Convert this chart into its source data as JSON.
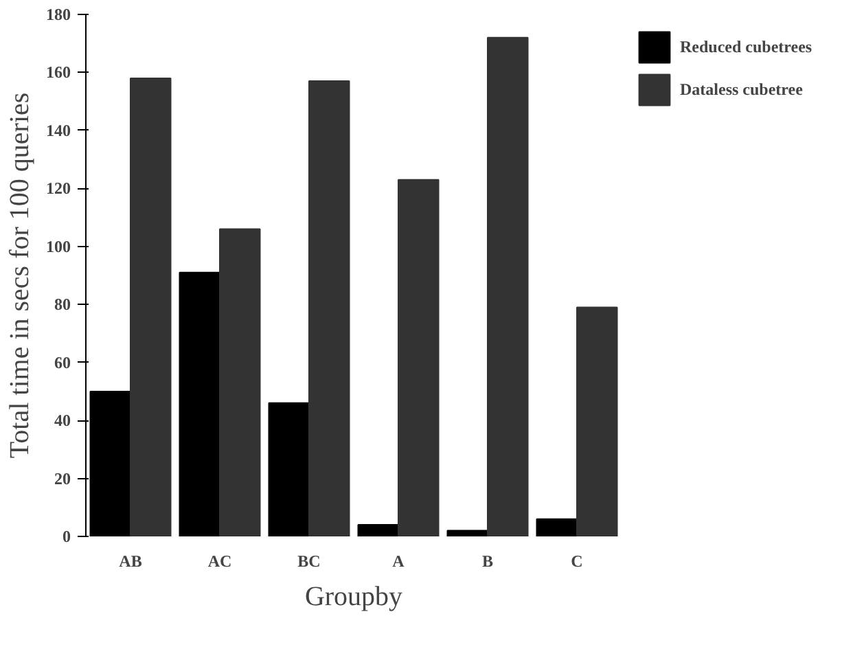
{
  "chart_data": {
    "type": "bar",
    "xlabel": "Groupby",
    "ylabel": "Total time in secs for 100 queries",
    "categories": [
      "AB",
      "AC",
      "BC",
      "A",
      "B",
      "C"
    ],
    "series": [
      {
        "name": "Reduced cubetrees",
        "color": "#000000",
        "values": [
          50,
          91,
          46,
          4,
          2,
          6
        ]
      },
      {
        "name": "Dataless cubetree",
        "color": "#333333",
        "values": [
          158,
          106,
          157,
          123,
          172,
          79
        ]
      }
    ],
    "ylim": [
      0,
      180
    ],
    "yticks": [
      0,
      20,
      40,
      60,
      80,
      100,
      120,
      140,
      160,
      180
    ],
    "grid": false,
    "legend": "top right"
  }
}
